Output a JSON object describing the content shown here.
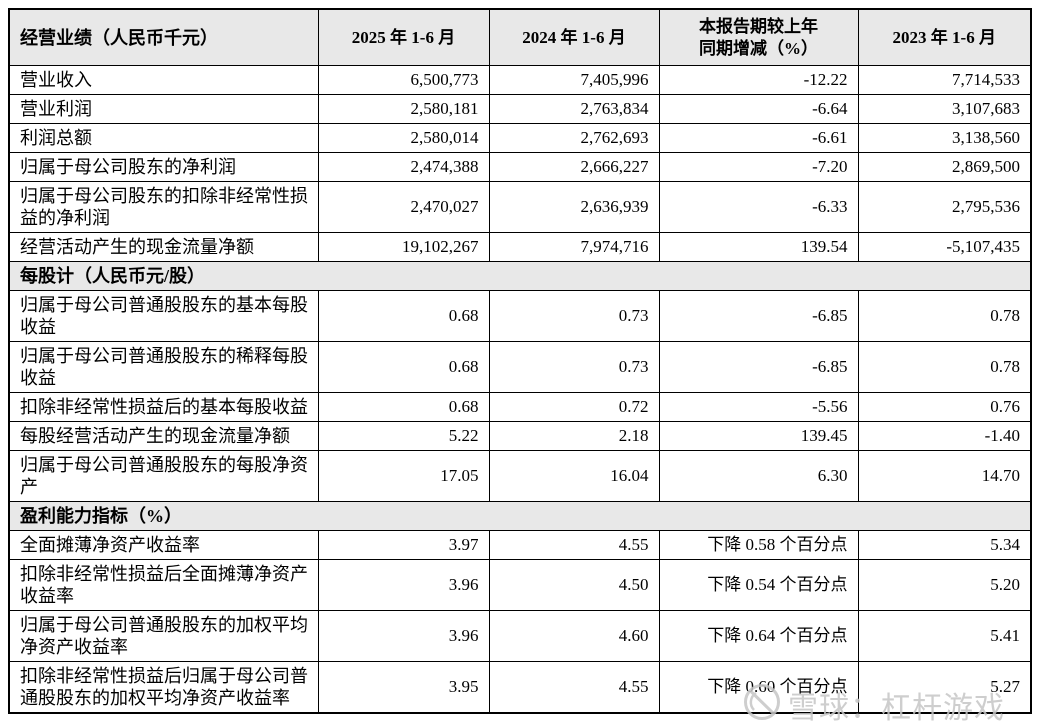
{
  "table": {
    "header": {
      "metric_col": "经营业绩（人民币千元）",
      "col_2025": "2025 年 1-6 月",
      "col_2024": "2024 年 1-6 月",
      "col_change_line1": "本报告期较上年",
      "col_change_line2": "同期增减（%）",
      "col_2023": "2023 年 1-6 月"
    },
    "rows": [
      {
        "type": "data",
        "label": "营业收入",
        "values": [
          "6,500,773",
          "7,405,996",
          "-12.22",
          "7,714,533"
        ]
      },
      {
        "type": "data",
        "label": "营业利润",
        "values": [
          "2,580,181",
          "2,763,834",
          "-6.64",
          "3,107,683"
        ]
      },
      {
        "type": "data",
        "label": "利润总额",
        "values": [
          "2,580,014",
          "2,762,693",
          "-6.61",
          "3,138,560"
        ]
      },
      {
        "type": "data",
        "label": "归属于母公司股东的净利润",
        "values": [
          "2,474,388",
          "2,666,227",
          "-7.20",
          "2,869,500"
        ]
      },
      {
        "type": "data",
        "label": "归属于母公司股东的扣除非经常性损益的净利润",
        "values": [
          "2,470,027",
          "2,636,939",
          "-6.33",
          "2,795,536"
        ]
      },
      {
        "type": "data",
        "label": "经营活动产生的现金流量净额",
        "values": [
          "19,102,267",
          "7,974,716",
          "139.54",
          "-5,107,435"
        ]
      },
      {
        "type": "section",
        "label": "每股计（人民币元/股）"
      },
      {
        "type": "data",
        "label": "归属于母公司普通股股东的基本每股收益",
        "values": [
          "0.68",
          "0.73",
          "-6.85",
          "0.78"
        ]
      },
      {
        "type": "data",
        "label": "归属于母公司普通股股东的稀释每股收益",
        "values": [
          "0.68",
          "0.73",
          "-6.85",
          "0.78"
        ]
      },
      {
        "type": "data",
        "label": "扣除非经常性损益后的基本每股收益",
        "values": [
          "0.68",
          "0.72",
          "-5.56",
          "0.76"
        ]
      },
      {
        "type": "data",
        "label": "每股经营活动产生的现金流量净额",
        "values": [
          "5.22",
          "2.18",
          "139.45",
          "-1.40"
        ]
      },
      {
        "type": "data",
        "label": "归属于母公司普通股股东的每股净资产",
        "values": [
          "17.05",
          "16.04",
          "6.30",
          "14.70"
        ]
      },
      {
        "type": "section",
        "label": "盈利能力指标（%）"
      },
      {
        "type": "data",
        "label": "全面摊薄净资产收益率",
        "values": [
          "3.97",
          "4.55",
          "下降 0.58 个百分点",
          "5.34"
        ]
      },
      {
        "type": "data",
        "label": "扣除非经常性损益后全面摊薄净资产收益率",
        "values": [
          "3.96",
          "4.50",
          "下降 0.54 个百分点",
          "5.20"
        ]
      },
      {
        "type": "data",
        "label": "归属于母公司普通股股东的加权平均净资产收益率",
        "values": [
          "3.96",
          "4.60",
          "下降 0.64 个百分点",
          "5.41"
        ]
      },
      {
        "type": "data",
        "label": "扣除非经常性损益后归属于母公司普通股股东的加权平均净资产收益率",
        "values": [
          "3.95",
          "4.55",
          "下降 0.60 个百分点",
          "5.27"
        ]
      }
    ]
  },
  "watermark": {
    "text": "雪球：杠杆游戏",
    "color": "#c6c6c6"
  },
  "colors": {
    "header_bg": "#e8e8e8",
    "border": "#000000",
    "text": "#000000"
  }
}
